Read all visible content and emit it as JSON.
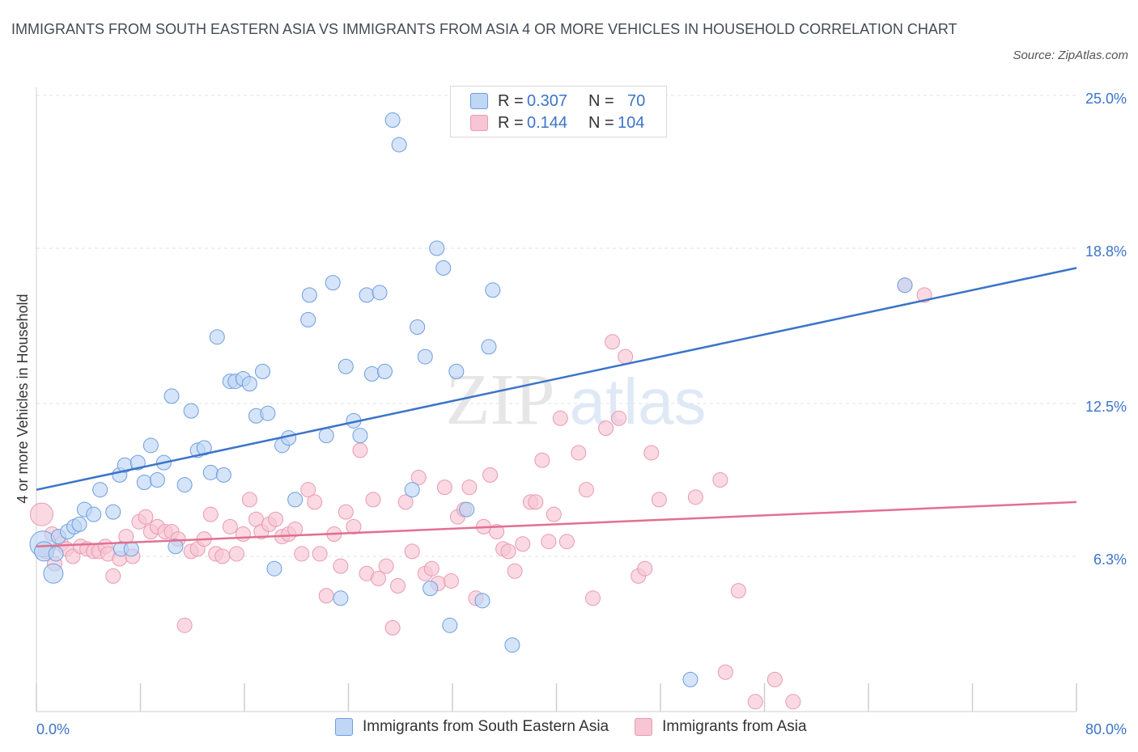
{
  "title": "IMMIGRANTS FROM SOUTH EASTERN ASIA VS IMMIGRANTS FROM ASIA 4 OR MORE VEHICLES IN HOUSEHOLD CORRELATION CHART",
  "source": "Source: ZipAtlas.com",
  "watermark": {
    "zip": "ZIP",
    "atlas": "atlas"
  },
  "colors": {
    "blue": "#3b74c9",
    "blue_fill": "#bfd6f5",
    "pink": "#e2708f",
    "pink_fill": "#f7c5d4",
    "grid": "#dde3ea",
    "axis_label": "#3b74c9"
  },
  "legend": {
    "r_label": "R =",
    "n_label": "N =",
    "series": [
      {
        "r": "0.307",
        "n": "70"
      },
      {
        "r": "0.144",
        "n": "104"
      }
    ]
  },
  "chart_data": {
    "type": "scatter",
    "title": "IMMIGRANTS FROM SOUTH EASTERN ASIA VS IMMIGRANTS FROM ASIA 4 OR MORE VEHICLES IN HOUSEHOLD CORRELATION CHART",
    "xlabel": "",
    "ylabel": "4 or more Vehicles in Household",
    "xlim": [
      0,
      80
    ],
    "ylim": [
      0,
      25.0
    ],
    "x_tick_labels": [
      "0.0%",
      "80.0%"
    ],
    "y_tick_labels": [
      "6.3%",
      "12.5%",
      "18.8%",
      "25.0%"
    ],
    "y_ticks": [
      6.3,
      12.5,
      18.8,
      25.0
    ],
    "grid": true,
    "legend_position": "top-center",
    "series": [
      {
        "name": "Immigrants from South Eastern Asia",
        "trend": {
          "x": [
            0,
            80
          ],
          "y": [
            9.0,
            18.0
          ]
        },
        "points": [
          [
            0.5,
            6.8
          ],
          [
            0.6,
            6.5
          ],
          [
            1.3,
            5.6
          ],
          [
            1.5,
            6.4
          ],
          [
            1.7,
            7.1
          ],
          [
            2.4,
            7.3
          ],
          [
            2.9,
            7.5
          ],
          [
            3.3,
            7.6
          ],
          [
            3.7,
            8.2
          ],
          [
            4.4,
            8.0
          ],
          [
            4.9,
            9.0
          ],
          [
            5.9,
            8.1
          ],
          [
            6.4,
            9.6
          ],
          [
            6.8,
            10.0
          ],
          [
            6.5,
            6.6
          ],
          [
            7.3,
            6.6
          ],
          [
            7.8,
            10.1
          ],
          [
            8.3,
            9.3
          ],
          [
            8.8,
            10.8
          ],
          [
            9.3,
            9.4
          ],
          [
            9.8,
            10.1
          ],
          [
            10.4,
            12.8
          ],
          [
            10.7,
            6.7
          ],
          [
            11.4,
            9.2
          ],
          [
            11.9,
            12.2
          ],
          [
            12.4,
            10.6
          ],
          [
            12.9,
            10.7
          ],
          [
            13.4,
            9.7
          ],
          [
            13.9,
            15.2
          ],
          [
            14.4,
            9.6
          ],
          [
            14.9,
            13.4
          ],
          [
            15.3,
            13.4
          ],
          [
            15.9,
            13.5
          ],
          [
            16.4,
            13.3
          ],
          [
            16.9,
            12.0
          ],
          [
            17.4,
            13.8
          ],
          [
            17.8,
            12.1
          ],
          [
            18.3,
            5.8
          ],
          [
            18.9,
            10.8
          ],
          [
            19.4,
            11.1
          ],
          [
            19.9,
            8.6
          ],
          [
            20.9,
            15.9
          ],
          [
            21.0,
            16.9
          ],
          [
            22.3,
            11.2
          ],
          [
            22.8,
            17.4
          ],
          [
            23.4,
            4.6
          ],
          [
            23.8,
            14.0
          ],
          [
            24.4,
            11.8
          ],
          [
            24.9,
            11.2
          ],
          [
            25.4,
            16.9
          ],
          [
            25.8,
            13.7
          ],
          [
            26.4,
            17.0
          ],
          [
            26.8,
            13.8
          ],
          [
            27.4,
            24.0
          ],
          [
            27.9,
            23.0
          ],
          [
            28.9,
            9.0
          ],
          [
            29.3,
            15.6
          ],
          [
            29.9,
            14.4
          ],
          [
            30.3,
            5.0
          ],
          [
            30.8,
            18.8
          ],
          [
            31.3,
            18.0
          ],
          [
            31.8,
            3.5
          ],
          [
            32.3,
            13.8
          ],
          [
            33.1,
            8.2
          ],
          [
            34.3,
            4.5
          ],
          [
            34.8,
            14.8
          ],
          [
            35.1,
            17.1
          ],
          [
            36.6,
            2.7
          ],
          [
            50.3,
            1.3
          ],
          [
            66.8,
            17.3
          ]
        ]
      },
      {
        "name": "Immigrants from Asia",
        "trend": {
          "x": [
            0,
            80
          ],
          "y": [
            6.7,
            8.5
          ]
        },
        "points": [
          [
            0.4,
            8.0
          ],
          [
            0.7,
            6.5
          ],
          [
            1.2,
            7.2
          ],
          [
            1.4,
            6.0
          ],
          [
            1.9,
            6.8
          ],
          [
            2.3,
            6.6
          ],
          [
            2.8,
            6.3
          ],
          [
            3.4,
            6.7
          ],
          [
            3.9,
            6.6
          ],
          [
            4.4,
            6.5
          ],
          [
            4.8,
            6.5
          ],
          [
            5.3,
            6.7
          ],
          [
            5.5,
            6.4
          ],
          [
            5.9,
            5.5
          ],
          [
            6.4,
            6.2
          ],
          [
            6.9,
            7.1
          ],
          [
            7.4,
            6.3
          ],
          [
            7.9,
            7.7
          ],
          [
            8.4,
            7.9
          ],
          [
            8.8,
            7.3
          ],
          [
            9.3,
            7.5
          ],
          [
            9.9,
            7.3
          ],
          [
            10.4,
            7.3
          ],
          [
            10.9,
            7.0
          ],
          [
            11.4,
            3.5
          ],
          [
            11.9,
            6.5
          ],
          [
            12.4,
            6.6
          ],
          [
            12.9,
            7.0
          ],
          [
            13.4,
            8.0
          ],
          [
            13.8,
            6.4
          ],
          [
            14.3,
            6.3
          ],
          [
            14.9,
            7.5
          ],
          [
            15.4,
            6.4
          ],
          [
            15.9,
            7.2
          ],
          [
            16.4,
            8.6
          ],
          [
            16.9,
            7.8
          ],
          [
            17.3,
            7.3
          ],
          [
            17.9,
            7.6
          ],
          [
            18.4,
            7.8
          ],
          [
            18.9,
            7.1
          ],
          [
            19.4,
            7.2
          ],
          [
            19.9,
            7.4
          ],
          [
            20.4,
            6.4
          ],
          [
            20.9,
            9.0
          ],
          [
            21.4,
            8.5
          ],
          [
            21.8,
            6.4
          ],
          [
            22.3,
            4.7
          ],
          [
            22.9,
            7.2
          ],
          [
            23.4,
            5.9
          ],
          [
            23.8,
            8.1
          ],
          [
            24.4,
            7.5
          ],
          [
            24.9,
            10.6
          ],
          [
            25.4,
            5.6
          ],
          [
            25.9,
            8.6
          ],
          [
            26.3,
            5.4
          ],
          [
            26.9,
            5.9
          ],
          [
            27.4,
            3.4
          ],
          [
            27.8,
            5.1
          ],
          [
            28.4,
            8.5
          ],
          [
            28.9,
            6.5
          ],
          [
            29.4,
            9.5
          ],
          [
            29.9,
            5.6
          ],
          [
            30.4,
            5.8
          ],
          [
            30.9,
            5.2
          ],
          [
            31.4,
            9.1
          ],
          [
            31.9,
            5.3
          ],
          [
            32.4,
            7.9
          ],
          [
            32.9,
            8.2
          ],
          [
            33.3,
            9.1
          ],
          [
            33.8,
            4.6
          ],
          [
            34.4,
            7.5
          ],
          [
            34.9,
            9.6
          ],
          [
            35.4,
            7.3
          ],
          [
            35.9,
            6.6
          ],
          [
            36.3,
            6.5
          ],
          [
            36.8,
            5.7
          ],
          [
            37.4,
            6.8
          ],
          [
            38.0,
            8.5
          ],
          [
            38.4,
            8.5
          ],
          [
            38.9,
            10.2
          ],
          [
            39.4,
            6.9
          ],
          [
            39.8,
            8.0
          ],
          [
            40.3,
            11.9
          ],
          [
            40.8,
            6.9
          ],
          [
            41.7,
            10.5
          ],
          [
            42.3,
            9.0
          ],
          [
            42.8,
            4.6
          ],
          [
            43.8,
            11.5
          ],
          [
            44.3,
            15.0
          ],
          [
            44.8,
            11.9
          ],
          [
            45.3,
            14.4
          ],
          [
            46.3,
            5.5
          ],
          [
            46.8,
            5.8
          ],
          [
            47.3,
            10.5
          ],
          [
            47.9,
            8.6
          ],
          [
            50.7,
            8.7
          ],
          [
            52.6,
            9.4
          ],
          [
            53.0,
            1.6
          ],
          [
            54.0,
            4.9
          ],
          [
            55.3,
            0.4
          ],
          [
            56.8,
            1.3
          ],
          [
            58.2,
            0.4
          ],
          [
            68.3,
            16.9
          ],
          [
            66.8,
            17.3
          ]
        ]
      }
    ]
  }
}
